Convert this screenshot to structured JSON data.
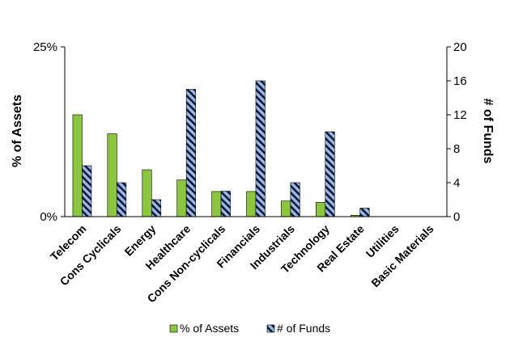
{
  "chart_data": {
    "type": "bar",
    "categories": [
      "Telecom",
      "Cons Cyclicals",
      "Energy",
      "Healthcare",
      "Cons Non-cyclicals",
      "Financials",
      "Industrials",
      "Technology",
      "Real Estate",
      "Utilities",
      "Basic Materials"
    ],
    "series": [
      {
        "name": "% of Assets",
        "axis": "left",
        "color": "#8cc63f",
        "pattern": "solid",
        "values": [
          15.0,
          12.2,
          6.9,
          5.4,
          3.7,
          3.7,
          2.3,
          2.1,
          0.2,
          0,
          0
        ]
      },
      {
        "name": "# of Funds",
        "axis": "right",
        "color": "#9db8e6",
        "pattern": "diagonal-stripes",
        "values": [
          6,
          4,
          2,
          15,
          3,
          16,
          4,
          10,
          1,
          0,
          0
        ]
      }
    ],
    "y_left": {
      "label": "% of Assets",
      "ylim": [
        0,
        25
      ],
      "ticks": [
        "0%",
        "25%"
      ],
      "tick_values": [
        0,
        25
      ]
    },
    "y_right": {
      "label": "# of Funds",
      "ylim": [
        0,
        20
      ],
      "ticks": [
        "0",
        "4",
        "8",
        "12",
        "16",
        "20"
      ],
      "tick_values": [
        0,
        4,
        8,
        12,
        16,
        20
      ]
    },
    "grid": false,
    "legend_position": "bottom"
  }
}
